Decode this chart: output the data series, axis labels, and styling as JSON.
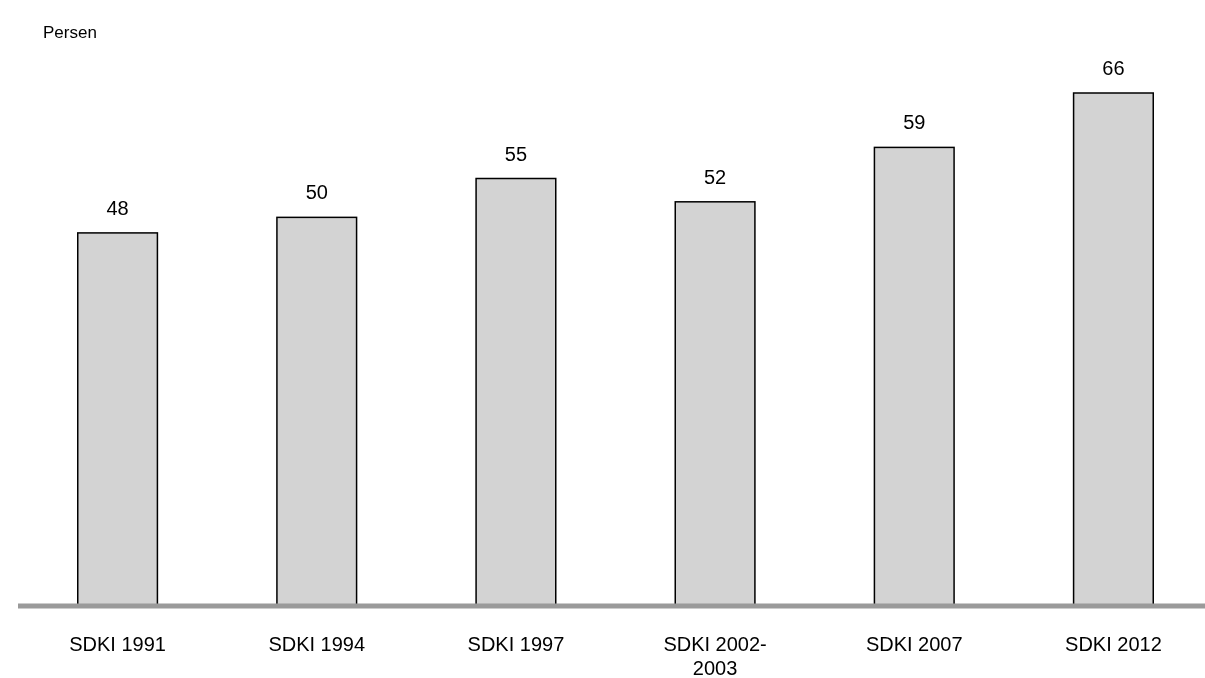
{
  "chart_data": {
    "type": "bar",
    "ylabel": "Persen",
    "categories": [
      "SDKI 1991",
      "SDKI 1994",
      "SDKI 1997",
      "SDKI 2002-2003",
      "SDKI 2007",
      "SDKI 2012"
    ],
    "values": [
      48,
      50,
      55,
      52,
      59,
      66
    ],
    "color": "#d3d3d3",
    "data_labels": true
  }
}
